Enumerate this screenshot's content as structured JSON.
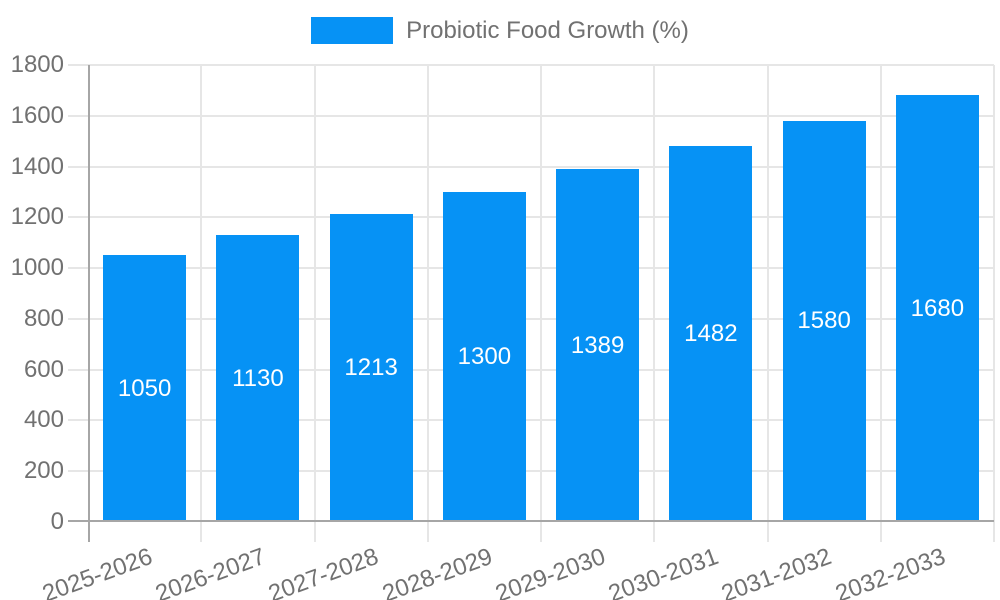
{
  "colors": {
    "bar": "#0692f5",
    "grid": "#e6e6e6",
    "axis": "#a6a6a6",
    "text": "#717171",
    "value_label": "#ffffff",
    "background": "#ffffff"
  },
  "legend": {
    "position": "top",
    "label": "Probiotic Food Growth (%)"
  },
  "chart_data": {
    "type": "bar",
    "title": "Probiotic Food Growth (%)",
    "categories": [
      "2025-2026",
      "2026-2027",
      "2027-2028",
      "2028-2029",
      "2029-2030",
      "2030-2031",
      "2031-2032",
      "2032-2033"
    ],
    "values": [
      1050,
      1130,
      1213,
      1300,
      1389,
      1482,
      1580,
      1680
    ],
    "series_name": "Probiotic Food Growth (%)",
    "xlabel": "",
    "ylabel": "",
    "ylim": [
      0,
      1800
    ],
    "y_ticks": [
      0,
      200,
      400,
      600,
      800,
      1000,
      1200,
      1400,
      1600,
      1800
    ],
    "grid": true,
    "legend_position": "top-center",
    "x_tick_rotation_deg": -20,
    "value_label_position": "inside-center"
  }
}
